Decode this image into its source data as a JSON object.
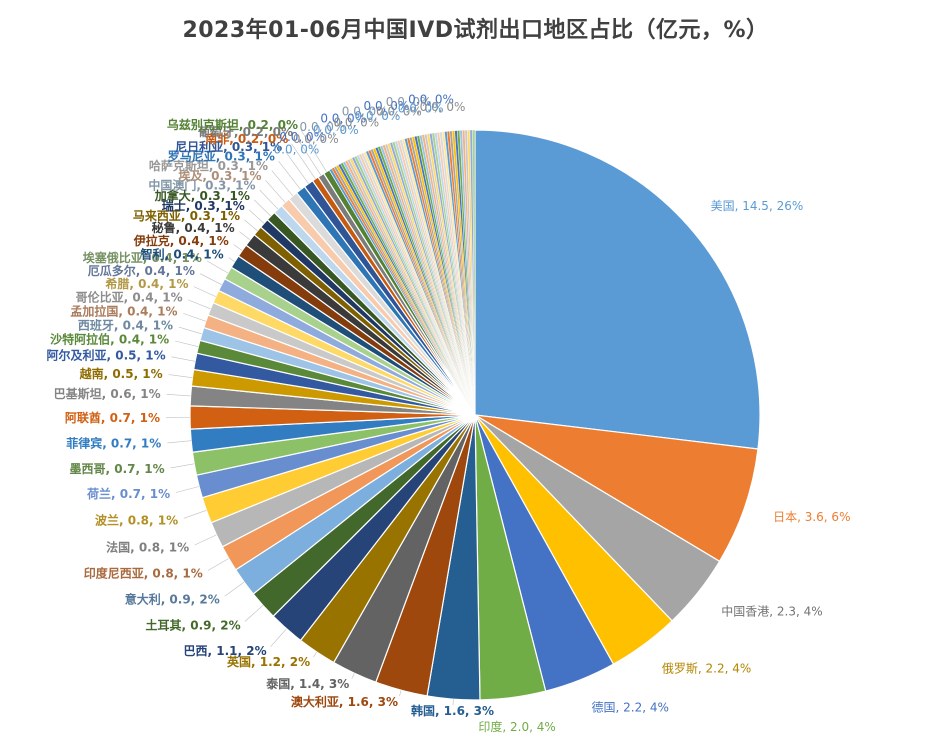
{
  "chart_data": {
    "type": "pie",
    "title": "2023年01-06月中国IVD试剂出口地区占比（亿元，%）",
    "slices": [
      {
        "name": "美国",
        "value": 14.5,
        "pct": "26%",
        "color": "#5B9BD5"
      },
      {
        "name": "日本",
        "value": 3.6,
        "pct": "6%",
        "color": "#ED7D31"
      },
      {
        "name": "中国香港",
        "value": 2.3,
        "pct": "4%",
        "color": "#A5A5A5"
      },
      {
        "name": "俄罗斯",
        "value": 2.2,
        "pct": "4%",
        "color": "#FFC000"
      },
      {
        "name": "德国",
        "value": 2.2,
        "pct": "4%",
        "color": "#4472C4"
      },
      {
        "name": "印度",
        "value": 2.0,
        "pct": "4%",
        "color": "#70AD47"
      },
      {
        "name": "韩国",
        "value": 1.6,
        "pct": "3%",
        "color": "#255E91"
      },
      {
        "name": "澳大利亚",
        "value": 1.6,
        "pct": "3%",
        "color": "#9E480E"
      },
      {
        "name": "泰国",
        "value": 1.4,
        "pct": "3%",
        "color": "#636363"
      },
      {
        "name": "英国",
        "value": 1.2,
        "pct": "2%",
        "color": "#997300"
      },
      {
        "name": "巴西",
        "value": 1.1,
        "pct": "2%",
        "color": "#264478"
      },
      {
        "name": "土耳其",
        "value": 0.9,
        "pct": "2%",
        "color": "#43682B"
      },
      {
        "name": "意大利",
        "value": 0.9,
        "pct": "2%",
        "color": "#7CAFDD"
      },
      {
        "name": "印度尼西亚",
        "value": 0.8,
        "pct": "1%",
        "color": "#F1975A"
      },
      {
        "name": "法国",
        "value": 0.8,
        "pct": "1%",
        "color": "#B7B7B7"
      },
      {
        "name": "波兰",
        "value": 0.8,
        "pct": "1%",
        "color": "#FFCD33"
      },
      {
        "name": "荷兰",
        "value": 0.7,
        "pct": "1%",
        "color": "#698ED0"
      },
      {
        "name": "墨西哥",
        "value": 0.7,
        "pct": "1%",
        "color": "#8CC168"
      },
      {
        "name": "菲律宾",
        "value": 0.7,
        "pct": "1%",
        "color": "#327DC2"
      },
      {
        "name": "阿联酋",
        "value": 0.7,
        "pct": "1%",
        "color": "#D26012"
      },
      {
        "name": "巴基斯坦",
        "value": 0.6,
        "pct": "1%",
        "color": "#848484"
      },
      {
        "name": "越南",
        "value": 0.5,
        "pct": "1%",
        "color": "#CC9A00"
      },
      {
        "name": "阿尔及利亚",
        "value": 0.5,
        "pct": "1%",
        "color": "#335AA1"
      },
      {
        "name": "沙特阿拉伯",
        "value": 0.4,
        "pct": "1%",
        "color": "#5A8A39"
      },
      {
        "name": "西班牙",
        "value": 0.4,
        "pct": "1%",
        "color": "#9DC3E6"
      },
      {
        "name": "孟加拉国",
        "value": 0.4,
        "pct": "1%",
        "color": "#F4B183"
      },
      {
        "name": "哥伦比亚",
        "value": 0.4,
        "pct": "1%",
        "color": "#C9C9C9"
      },
      {
        "name": "希腊",
        "value": 0.4,
        "pct": "1%",
        "color": "#FFD966"
      },
      {
        "name": "厄瓜多尔",
        "value": 0.4,
        "pct": "1%",
        "color": "#8FAADC"
      },
      {
        "name": "埃塞俄比亚",
        "value": 0.4,
        "pct": "1%",
        "color": "#A9D18E"
      },
      {
        "name": "智利",
        "value": 0.4,
        "pct": "1%",
        "color": "#1F4E79"
      },
      {
        "name": "伊拉克",
        "value": 0.4,
        "pct": "1%",
        "color": "#843C0C"
      },
      {
        "name": "秘鲁",
        "value": 0.4,
        "pct": "1%",
        "color": "#3A3A3A"
      },
      {
        "name": "马来西亚",
        "value": 0.3,
        "pct": "1%",
        "color": "#7F6000"
      },
      {
        "name": "瑞士",
        "value": 0.3,
        "pct": "1%",
        "color": "#203864"
      },
      {
        "name": "加拿大",
        "value": 0.3,
        "pct": "1%",
        "color": "#385723"
      },
      {
        "name": "中国澳门",
        "value": 0.3,
        "pct": "1%",
        "color": "#BDD7EE"
      },
      {
        "name": "埃及",
        "value": 0.3,
        "pct": "1%",
        "color": "#F8CBAD"
      },
      {
        "name": "哈萨克斯坦",
        "value": 0.3,
        "pct": "1%",
        "color": "#DBDBDB"
      },
      {
        "name": "罗马尼亚",
        "value": 0.3,
        "pct": "1%",
        "color": "#2E75B6"
      },
      {
        "name": "尼日利亚",
        "value": 0.3,
        "pct": "1%",
        "color": "#2F5597"
      },
      {
        "name": "南非",
        "value": 0.2,
        "pct": "0%",
        "color": "#C55A11"
      },
      {
        "name": "葡萄牙",
        "value": 0.2,
        "pct": "0%",
        "color": "#7B7B7B"
      },
      {
        "name": "乌兹别克斯坦",
        "value": 0.2,
        "pct": "0%",
        "color": "#548235"
      }
    ],
    "others": {
      "count": 60,
      "total": 4.6,
      "label": "0.0, 0%"
    }
  }
}
